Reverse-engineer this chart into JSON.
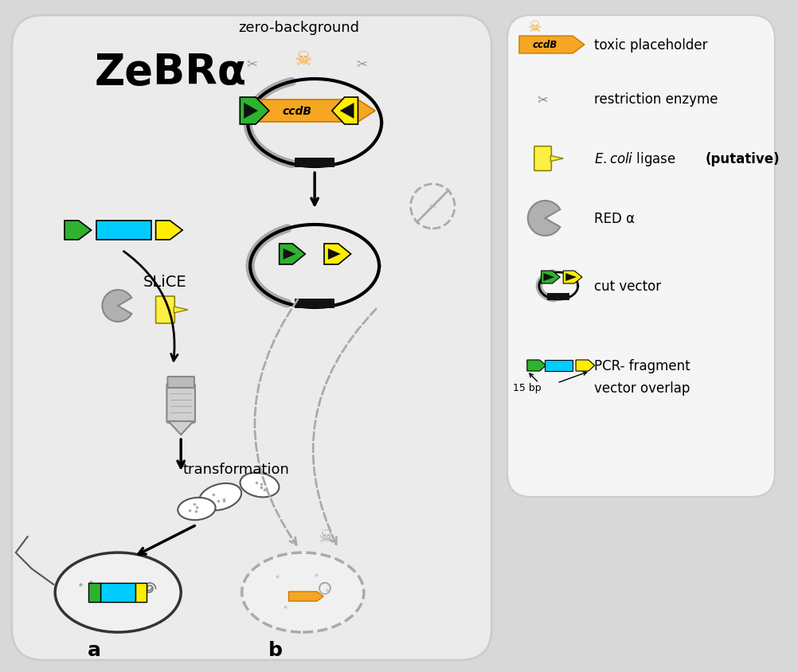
{
  "bg_color": "#e8e8e8",
  "main_panel_bg": "#ebebeb",
  "legend_bg": "#f0f0f0",
  "title_text": "ZeBRα",
  "title_fontsize": 36,
  "zero_bg_text": "zero-background",
  "slice_text": "SLiCE",
  "transform_text": "transformation",
  "label_a": "a",
  "label_b": "b",
  "orange_color": "#F5A623",
  "green_color": "#2db32d",
  "cyan_color": "#00CCFF",
  "yellow_color": "#FFEE00",
  "dark_color": "#222222",
  "gray_color": "#aaaaaa",
  "light_gray": "#cccccc",
  "legend_items": [
    "toxic placeholder",
    "restriction enzyme",
    "E. coli ligase (putative)",
    "RED α",
    "cut vector",
    "PCR- fragment\nvector overlap"
  ]
}
